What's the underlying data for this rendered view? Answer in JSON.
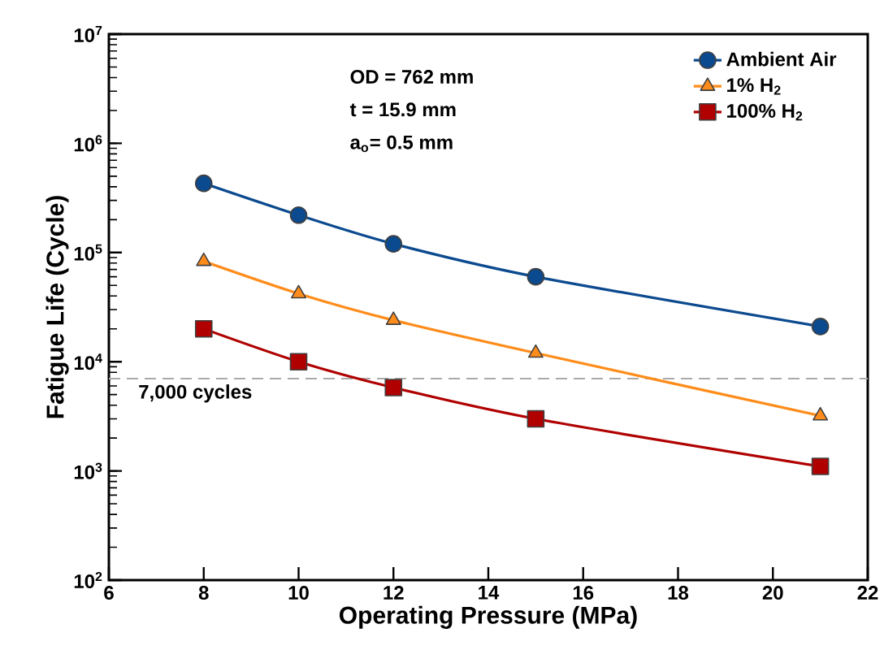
{
  "chart_data": {
    "type": "line",
    "xlabel": "Operating Pressure (MPa)",
    "ylabel": "Fatigue Life (Cycle)",
    "x": [
      8,
      10,
      12,
      15,
      21
    ],
    "series": [
      {
        "name": "Ambient Air",
        "color": "#0b4a8f",
        "marker": "circle",
        "values": [
          430000,
          220000,
          120000,
          60000,
          21000
        ]
      },
      {
        "name": "1% H$_{2}$",
        "color": "#ff8c1a",
        "marker": "triangle",
        "values": [
          83000,
          42000,
          24000,
          12000,
          3200
        ]
      },
      {
        "name": "100% H$_{2}$",
        "color": "#b00000",
        "marker": "square",
        "values": [
          20000,
          10000,
          5800,
          3000,
          1100
        ]
      }
    ],
    "log": "y",
    "xlim": [
      6,
      22
    ],
    "xticks": [
      6,
      8,
      10,
      12,
      14,
      16,
      18,
      20,
      22
    ],
    "ylim": [
      100,
      10000000
    ],
    "yticks": [
      {
        "value": 100,
        "label": "10$^{2}$"
      },
      {
        "value": 1000,
        "label": "10$^{3}$"
      },
      {
        "value": 10000,
        "label": "10$^{4}$"
      },
      {
        "value": 100000,
        "label": "10$^{5}$"
      },
      {
        "value": 1000000,
        "label": "10$^{6}$"
      },
      {
        "value": 10000000,
        "label": "10$^{7}$"
      }
    ],
    "legend": "top right",
    "ref_lines": [
      {
        "axis": "y",
        "value": 7000,
        "label": "7,000 cycles",
        "color": "#aaaaaa",
        "line_style": "dashed"
      }
    ],
    "annotations": [
      "OD = 762 mm",
      "t = 15.9 mm",
      "a$_{o}$= 0.5 mm"
    ]
  }
}
